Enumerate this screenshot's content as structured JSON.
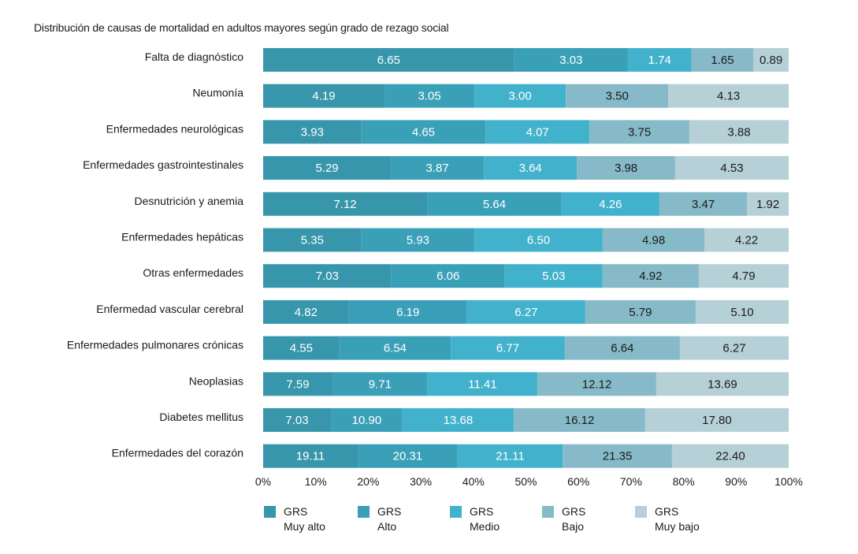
{
  "chart_data": {
    "type": "bar",
    "orientation": "horizontal",
    "stacked": "percent",
    "title": "Distribución de causas de mortalidad en adultos mayores según grado de rezago social",
    "xlabel": "",
    "ylabel": "",
    "xlim": [
      0,
      100
    ],
    "x_ticks": [
      "0%",
      "10%",
      "20%",
      "30%",
      "40%",
      "50%",
      "60%",
      "70%",
      "80%",
      "90%",
      "100%"
    ],
    "grid": false,
    "legend_position": "bottom",
    "categories": [
      "Falta de diagnóstico",
      "Neumonía",
      "Enfermedades neurológicas",
      "Enfermedades gastrointestinales",
      "Desnutrición y anemia",
      "Enfermedades hepáticas",
      "Otras enfermedades",
      "Enfermedad vascular cerebral",
      "Enfermedades pulmonares crónicas",
      "Neoplasias",
      "Diabetes mellitus",
      "Enfermedades del corazón"
    ],
    "series": [
      {
        "name": "GRS Muy alto",
        "label_line1": "GRS",
        "label_line2": "Muy alto",
        "color": "#3796ab",
        "text_color": "#ffffff",
        "values": [
          6.65,
          4.19,
          3.93,
          5.29,
          7.12,
          5.35,
          7.03,
          4.82,
          4.55,
          7.59,
          7.03,
          19.11
        ]
      },
      {
        "name": "GRS Alto",
        "label_line1": "GRS",
        "label_line2": "Alto",
        "color": "#3aa0b8",
        "text_color": "#ffffff",
        "values": [
          3.03,
          3.05,
          4.65,
          3.87,
          5.64,
          5.93,
          6.06,
          6.19,
          6.54,
          9.71,
          10.9,
          20.31
        ]
      },
      {
        "name": "GRS Medio",
        "label_line1": "GRS",
        "label_line2": "Medio",
        "color": "#42b2cc",
        "text_color": "#ffffff",
        "values": [
          1.74,
          3.0,
          4.07,
          3.64,
          4.26,
          6.5,
          5.03,
          6.27,
          6.77,
          11.41,
          13.68,
          21.11
        ]
      },
      {
        "name": "GRS Bajo",
        "label_line1": "GRS",
        "label_line2": "Bajo",
        "color": "#86bac8",
        "text_color": "#1a1a1a",
        "values": [
          1.65,
          3.5,
          3.75,
          3.98,
          3.47,
          4.98,
          4.92,
          5.79,
          6.64,
          12.12,
          16.12,
          21.35
        ]
      },
      {
        "name": "GRS Muy bajo",
        "label_line1": "GRS",
        "label_line2": "Muy bajo",
        "color": "#b6d0d8",
        "text_color": "#1a1a1a",
        "values": [
          0.89,
          4.13,
          3.88,
          4.53,
          1.92,
          4.22,
          4.79,
          5.1,
          6.27,
          13.69,
          17.8,
          22.4
        ]
      }
    ],
    "cumulative_percent_boundaries": [
      [
        47.8,
        69.4,
        81.5,
        93.3
      ],
      [
        23.1,
        40.2,
        57.6,
        77.1
      ],
      [
        18.7,
        42.3,
        62.1,
        81.1
      ],
      [
        24.3,
        42.0,
        59.7,
        78.4
      ],
      [
        31.2,
        56.8,
        75.4,
        92.1
      ],
      [
        18.7,
        40.2,
        64.6,
        84.0
      ],
      [
        24.4,
        46.0,
        64.6,
        82.9
      ],
      [
        16.3,
        38.8,
        61.3,
        82.3
      ],
      [
        14.5,
        35.7,
        57.4,
        79.3
      ],
      [
        13.2,
        31.3,
        52.2,
        74.8
      ],
      [
        12.9,
        26.5,
        47.7,
        72.7
      ],
      [
        18.0,
        37.0,
        57.0,
        77.8
      ]
    ]
  }
}
